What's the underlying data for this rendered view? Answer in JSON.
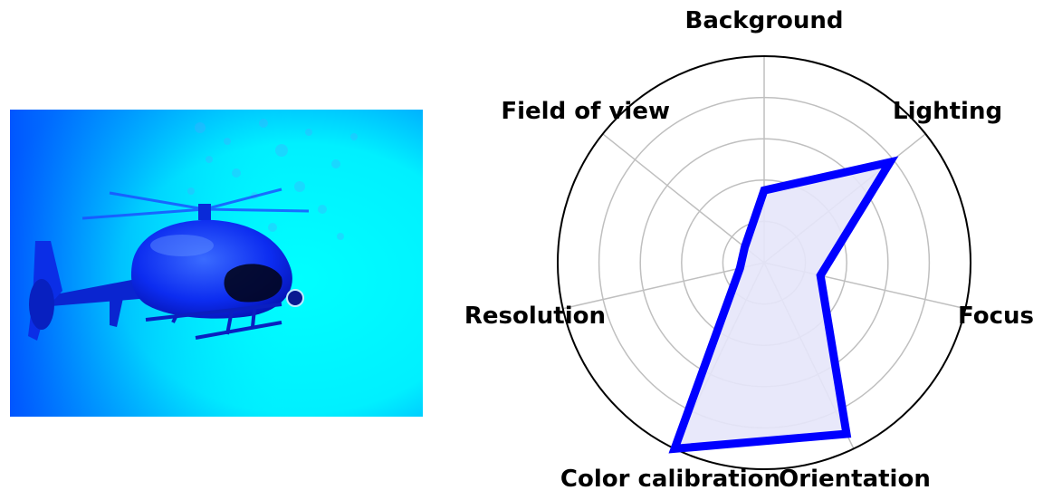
{
  "figure": {
    "photo": {
      "icon": "helicopter-photo",
      "tint": "#00e5ff"
    },
    "chart_data": {
      "type": "radar",
      "axes": [
        "Background",
        "Lighting",
        "Focus",
        "Orientation",
        "Color calibration",
        "Resolution",
        "Field of view"
      ],
      "series": [
        {
          "values": [
            0.35,
            0.78,
            0.28,
            0.92,
            1.0,
            0.12,
            0.12
          ]
        }
      ],
      "rlim": [
        0,
        1
      ],
      "ring_count": 4,
      "grid": true,
      "colors": {
        "line": "#0000ff",
        "fill": "#e6e6fa",
        "grid": "#bfbfbf",
        "frame": "#000000"
      }
    }
  }
}
